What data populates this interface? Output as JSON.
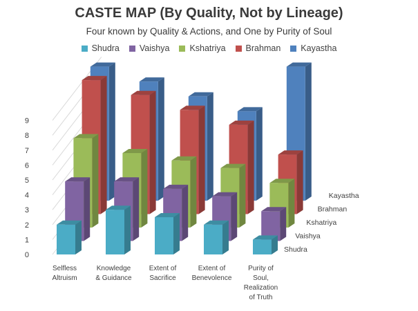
{
  "chart_data": {
    "type": "bar",
    "title": "CASTE MAP (By Quality,  Not by Lineage)",
    "subtitle": "Four known  by Quality & Actions, and One by Purity of Soul",
    "categories": [
      [
        "Selfless",
        "Altruism"
      ],
      [
        "Knowledge",
        "& Guidance"
      ],
      [
        "Extent of",
        "Sacrifice"
      ],
      [
        "Extent of",
        "Benevolence"
      ],
      [
        "Purity of",
        "Soul,",
        "Realization",
        "of Truth"
      ]
    ],
    "series": [
      {
        "name": "Shudra",
        "color": "#4BACC6",
        "values": [
          2,
          3,
          2.5,
          2,
          1
        ]
      },
      {
        "name": "Vaishya",
        "color": "#8064A2",
        "values": [
          4,
          4,
          3.5,
          3,
          2
        ]
      },
      {
        "name": "Kshatriya",
        "color": "#9BBB59",
        "values": [
          6,
          5,
          4.5,
          4,
          3
        ]
      },
      {
        "name": "Brahman",
        "color": "#C0504D",
        "values": [
          9,
          8,
          7,
          6,
          4
        ]
      },
      {
        "name": "Kayastha",
        "color": "#4F81BD",
        "values": [
          9,
          8,
          7,
          6,
          9
        ]
      }
    ],
    "yticks": [
      "0",
      "1",
      "2",
      "3",
      "4",
      "5",
      "6",
      "7",
      "8",
      "9"
    ],
    "ylim": [
      0,
      9
    ],
    "legend_position": "top",
    "grid": true
  }
}
